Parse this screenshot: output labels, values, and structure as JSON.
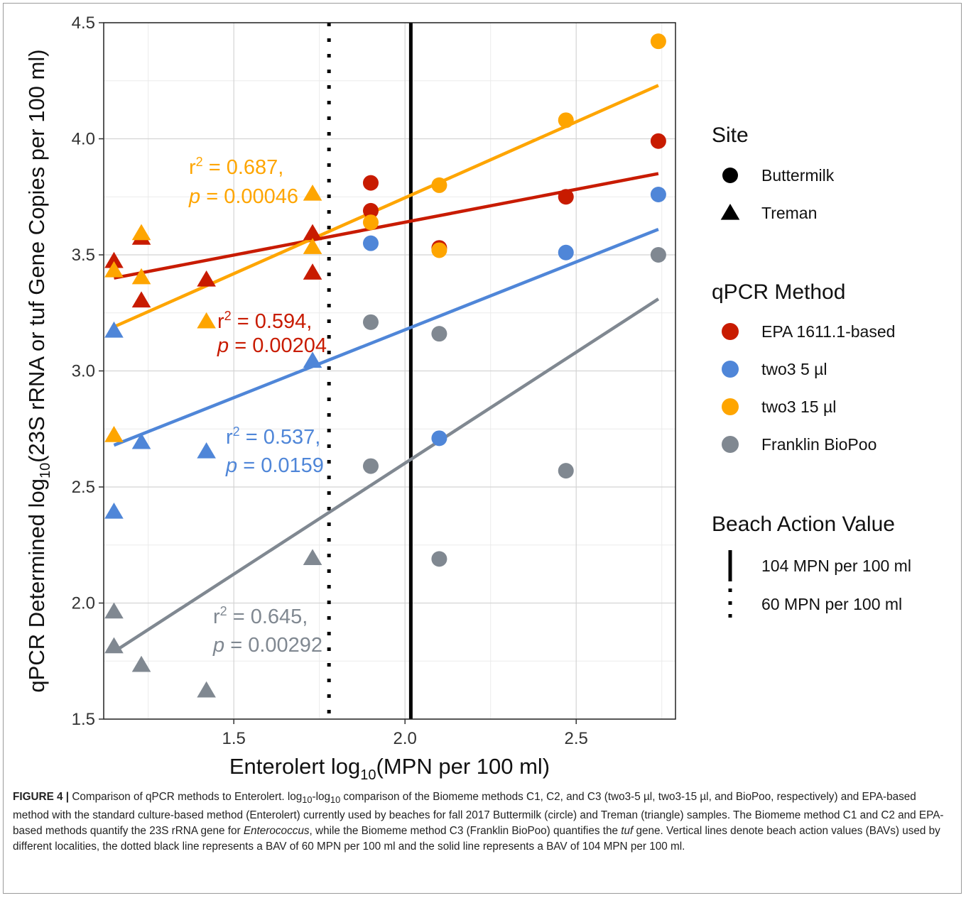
{
  "chart_data": {
    "type": "scatter",
    "xlabel": "Enterolert log10(MPN per 100 ml)",
    "ylabel": "qPCR Determined log10(23S rRNA or tuf Gene Copies per 100 ml)",
    "xlim": [
      1.12,
      2.79
    ],
    "ylim": [
      1.5,
      4.5
    ],
    "x_ticks": [
      1.5,
      2.0,
      2.5
    ],
    "x_tick_labels": [
      "1.5",
      "2.0",
      "2.5"
    ],
    "y_ticks": [
      1.5,
      2.0,
      2.5,
      3.0,
      3.5,
      4.0,
      4.5
    ],
    "y_tick_labels": [
      "1.5",
      "2.0",
      "2.5",
      "3.0",
      "3.5",
      "4.0",
      "4.5"
    ],
    "grid": true,
    "legend_position": "right",
    "series": [
      {
        "name": "EPA 1611.1-based",
        "color": "#c81b00",
        "points": [
          {
            "x": 1.15,
            "y": 3.47,
            "site": "Treman"
          },
          {
            "x": 1.23,
            "y": 3.57,
            "site": "Treman"
          },
          {
            "x": 1.23,
            "y": 3.3,
            "site": "Treman"
          },
          {
            "x": 1.42,
            "y": 3.39,
            "site": "Treman"
          },
          {
            "x": 1.73,
            "y": 3.59,
            "site": "Treman"
          },
          {
            "x": 1.73,
            "y": 3.42,
            "site": "Treman"
          },
          {
            "x": 1.9,
            "y": 3.81,
            "site": "Buttermilk"
          },
          {
            "x": 1.9,
            "y": 3.69,
            "site": "Buttermilk"
          },
          {
            "x": 2.1,
            "y": 3.53,
            "site": "Buttermilk"
          },
          {
            "x": 2.47,
            "y": 3.75,
            "site": "Buttermilk"
          },
          {
            "x": 2.74,
            "y": 3.99,
            "site": "Buttermilk"
          }
        ],
        "fit": {
          "x": [
            1.15,
            2.74
          ],
          "y": [
            3.4,
            3.85
          ]
        },
        "annotation": {
          "r2": "0.594,",
          "p": "0.00204"
        }
      },
      {
        "name": "two3 5 µl",
        "color": "#4f86d8",
        "points": [
          {
            "x": 1.15,
            "y": 3.17,
            "site": "Treman"
          },
          {
            "x": 1.15,
            "y": 2.39,
            "site": "Treman"
          },
          {
            "x": 1.23,
            "y": 2.69,
            "site": "Treman"
          },
          {
            "x": 1.42,
            "y": 2.65,
            "site": "Treman"
          },
          {
            "x": 1.73,
            "y": 3.04,
            "site": "Treman"
          },
          {
            "x": 1.9,
            "y": 3.55,
            "site": "Buttermilk"
          },
          {
            "x": 2.1,
            "y": 2.71,
            "site": "Buttermilk"
          },
          {
            "x": 2.47,
            "y": 3.51,
            "site": "Buttermilk"
          },
          {
            "x": 2.74,
            "y": 3.76,
            "site": "Buttermilk"
          }
        ],
        "fit": {
          "x": [
            1.15,
            2.74
          ],
          "y": [
            2.68,
            3.61
          ]
        },
        "annotation": {
          "r2": "0.537,",
          "p": "0.0159"
        }
      },
      {
        "name": "two3 15 µl",
        "color": "#fea500",
        "points": [
          {
            "x": 1.15,
            "y": 3.43,
            "site": "Treman"
          },
          {
            "x": 1.15,
            "y": 2.72,
            "site": "Treman"
          },
          {
            "x": 1.23,
            "y": 3.59,
            "site": "Treman"
          },
          {
            "x": 1.23,
            "y": 3.4,
            "site": "Treman"
          },
          {
            "x": 1.42,
            "y": 3.21,
            "site": "Treman"
          },
          {
            "x": 1.73,
            "y": 3.76,
            "site": "Treman"
          },
          {
            "x": 1.73,
            "y": 3.53,
            "site": "Treman"
          },
          {
            "x": 1.9,
            "y": 3.64,
            "site": "Buttermilk"
          },
          {
            "x": 2.1,
            "y": 3.8,
            "site": "Buttermilk"
          },
          {
            "x": 2.1,
            "y": 3.52,
            "site": "Buttermilk"
          },
          {
            "x": 2.47,
            "y": 4.08,
            "site": "Buttermilk"
          },
          {
            "x": 2.74,
            "y": 4.42,
            "site": "Buttermilk"
          }
        ],
        "fit": {
          "x": [
            1.15,
            2.74
          ],
          "y": [
            3.19,
            4.23
          ]
        },
        "annotation": {
          "r2": "0.687,",
          "p": "0.00046"
        }
      },
      {
        "name": "Franklin BioPoo",
        "color": "#808891",
        "points": [
          {
            "x": 1.15,
            "y": 1.96,
            "site": "Treman"
          },
          {
            "x": 1.15,
            "y": 1.81,
            "site": "Treman"
          },
          {
            "x": 1.23,
            "y": 1.73,
            "site": "Treman"
          },
          {
            "x": 1.42,
            "y": 1.62,
            "site": "Treman"
          },
          {
            "x": 1.73,
            "y": 2.19,
            "site": "Treman"
          },
          {
            "x": 1.9,
            "y": 3.21,
            "site": "Buttermilk"
          },
          {
            "x": 1.9,
            "y": 2.59,
            "site": "Buttermilk"
          },
          {
            "x": 2.1,
            "y": 3.16,
            "site": "Buttermilk"
          },
          {
            "x": 2.1,
            "y": 2.19,
            "site": "Buttermilk"
          },
          {
            "x": 2.47,
            "y": 2.57,
            "site": "Buttermilk"
          },
          {
            "x": 2.74,
            "y": 3.5,
            "site": "Buttermilk"
          }
        ],
        "fit": {
          "x": [
            1.15,
            2.74
          ],
          "y": [
            1.79,
            3.31
          ]
        },
        "annotation": {
          "r2": "0.645,",
          "p": "0.00292"
        }
      }
    ],
    "reference_lines": [
      {
        "x": 2.017,
        "style": "solid",
        "label": "104 MPN per 100 ml"
      },
      {
        "x": 1.778,
        "style": "dotted",
        "label": "60 MPN per 100 ml"
      }
    ],
    "legend": {
      "site_title": "Site",
      "site_items": [
        {
          "label": "Buttermilk",
          "shape": "circle"
        },
        {
          "label": "Treman",
          "shape": "triangle"
        }
      ],
      "method_title": "qPCR Method",
      "bav_title": "Beach Action Value"
    }
  },
  "caption": {
    "figure_label": "FIGURE 4 |",
    "text_a": " Comparison of qPCR methods to Enterolert. log",
    "sub_a": "10",
    "text_b": "-log",
    "sub_b": "10",
    "text_c": " comparison of the Biomeme methods C1, C2, and C3 (two3-5 µl, two3-15 µl, and BioPoo, respectively) and EPA-based method with the standard culture-based method (Enterolert) currently used by beaches for fall 2017 Buttermilk (circle) and Treman (triangle) samples. The Biomeme method C1 and C2 and EPA-based methods quantify the 23S rRNA gene for ",
    "italic": "Enterococcus",
    "text_d": ", while the Biomeme method C3 (Franklin BioPoo) quantifies the ",
    "italic_b": "tuf",
    "text_e": " gene. Vertical lines denote beach action values (BAVs) used by different localities, the dotted black line represents a BAV of 60 MPN per 100 ml and the solid line represents a BAV of 104 MPN per 100 ml."
  }
}
